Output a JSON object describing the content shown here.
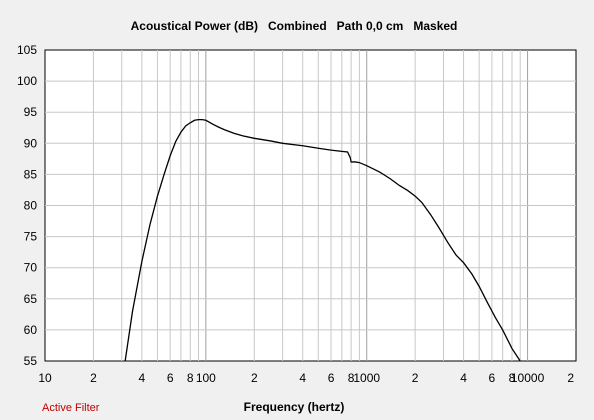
{
  "chart_data": {
    "type": "line",
    "title": "Acoustical Power (dB)   Combined   Path 0,0 cm   Masked",
    "xlabel": "Frequency (hertz)",
    "ylabel": "",
    "x_scale": "log",
    "xlim": [
      10,
      20000
    ],
    "ylim": [
      55,
      105
    ],
    "y_ticks": [
      "55",
      "60",
      "65",
      "70",
      "75",
      "80",
      "85",
      "90",
      "95",
      "100",
      "105"
    ],
    "x_tick_labels": [
      {
        "value": 10,
        "label": "10"
      },
      {
        "value": 20,
        "label": "2"
      },
      {
        "value": 40,
        "label": "4"
      },
      {
        "value": 60,
        "label": "6"
      },
      {
        "value": 80,
        "label": "8"
      },
      {
        "value": 100,
        "label": "100"
      },
      {
        "value": 200,
        "label": "2"
      },
      {
        "value": 400,
        "label": "4"
      },
      {
        "value": 600,
        "label": "6"
      },
      {
        "value": 800,
        "label": "8"
      },
      {
        "value": 1000,
        "label": "1000"
      },
      {
        "value": 2000,
        "label": "2"
      },
      {
        "value": 4000,
        "label": "4"
      },
      {
        "value": 6000,
        "label": "6"
      },
      {
        "value": 8000,
        "label": "8"
      },
      {
        "value": 10000,
        "label": "10000"
      },
      {
        "value": 20000,
        "label": "2"
      }
    ],
    "grid": true,
    "series": [
      {
        "x": [
          31.5,
          35,
          40,
          45,
          50,
          55,
          60,
          65,
          70,
          75,
          80,
          85,
          90,
          95,
          100,
          105,
          110,
          120,
          130,
          150,
          170,
          200,
          250,
          300,
          400,
          500,
          600,
          700,
          760,
          790,
          800,
          850,
          900,
          1000,
          1200,
          1400,
          1600,
          1800,
          2000,
          2200,
          2500,
          2800,
          3200,
          3600,
          4000,
          4500,
          5000,
          5600,
          6300,
          7000,
          8000,
          9000
        ],
        "y": [
          55,
          63,
          71,
          77,
          81.5,
          85,
          88,
          90.3,
          91.8,
          92.8,
          93.3,
          93.7,
          93.8,
          93.8,
          93.7,
          93.4,
          93.1,
          92.6,
          92.2,
          91.6,
          91.2,
          90.8,
          90.4,
          90.0,
          89.6,
          89.2,
          88.9,
          88.7,
          88.6,
          87.7,
          87.0,
          87.0,
          86.9,
          86.4,
          85.4,
          84.3,
          83.2,
          82.4,
          81.5,
          80.5,
          78.5,
          76.5,
          74.0,
          72.0,
          70.8,
          69.0,
          67.0,
          64.5,
          62.0,
          60.0,
          57.0,
          55.0
        ]
      }
    ]
  },
  "footer": {
    "status_label": "Active Filter"
  },
  "colors": {
    "curve": "#000000",
    "grid": "#c8c8c8",
    "plot_bg": "#ffffff",
    "status": "#c00000"
  }
}
